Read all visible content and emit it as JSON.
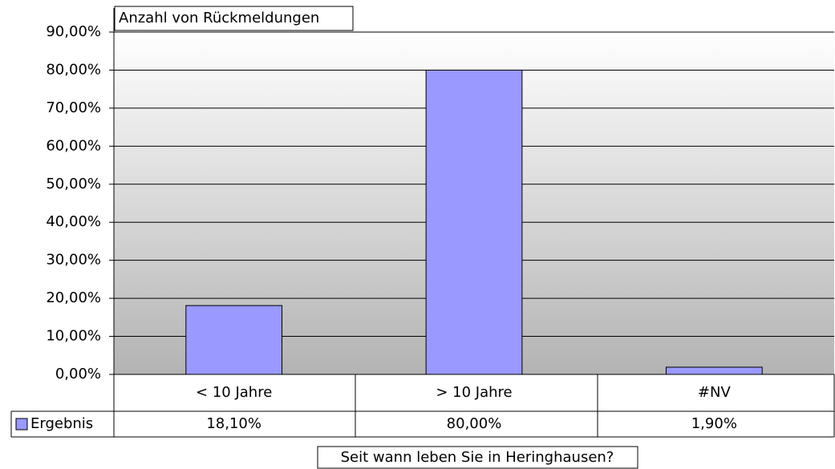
{
  "chart_data": {
    "type": "bar",
    "title": "Anzahl von Rückmeldungen",
    "x_label": "Seit wann leben Sie in Heringhausen?",
    "categories": [
      "< 10 Jahre",
      "> 10 Jahre",
      "#NV"
    ],
    "series": [
      {
        "name": "Ergebnis",
        "color": "#9999ff",
        "values": [
          18.1,
          80,
          1.9
        ],
        "value_labels": [
          "18,10%",
          "80,00%",
          "1,90%"
        ]
      }
    ],
    "ylim": [
      0,
      90
    ],
    "yticks": [
      {
        "value": 0,
        "label": "0,00%"
      },
      {
        "value": 10,
        "label": "10,00%"
      },
      {
        "value": 20,
        "label": "20,00%"
      },
      {
        "value": 30,
        "label": "30,00%"
      },
      {
        "value": 40,
        "label": "40,00%"
      },
      {
        "value": 50,
        "label": "50,00%"
      },
      {
        "value": 60,
        "label": "60,00%"
      },
      {
        "value": 70,
        "label": "70,00%"
      },
      {
        "value": 80,
        "label": "80,00%"
      },
      {
        "value": 90,
        "label": "90,00%"
      }
    ],
    "grid": true
  }
}
